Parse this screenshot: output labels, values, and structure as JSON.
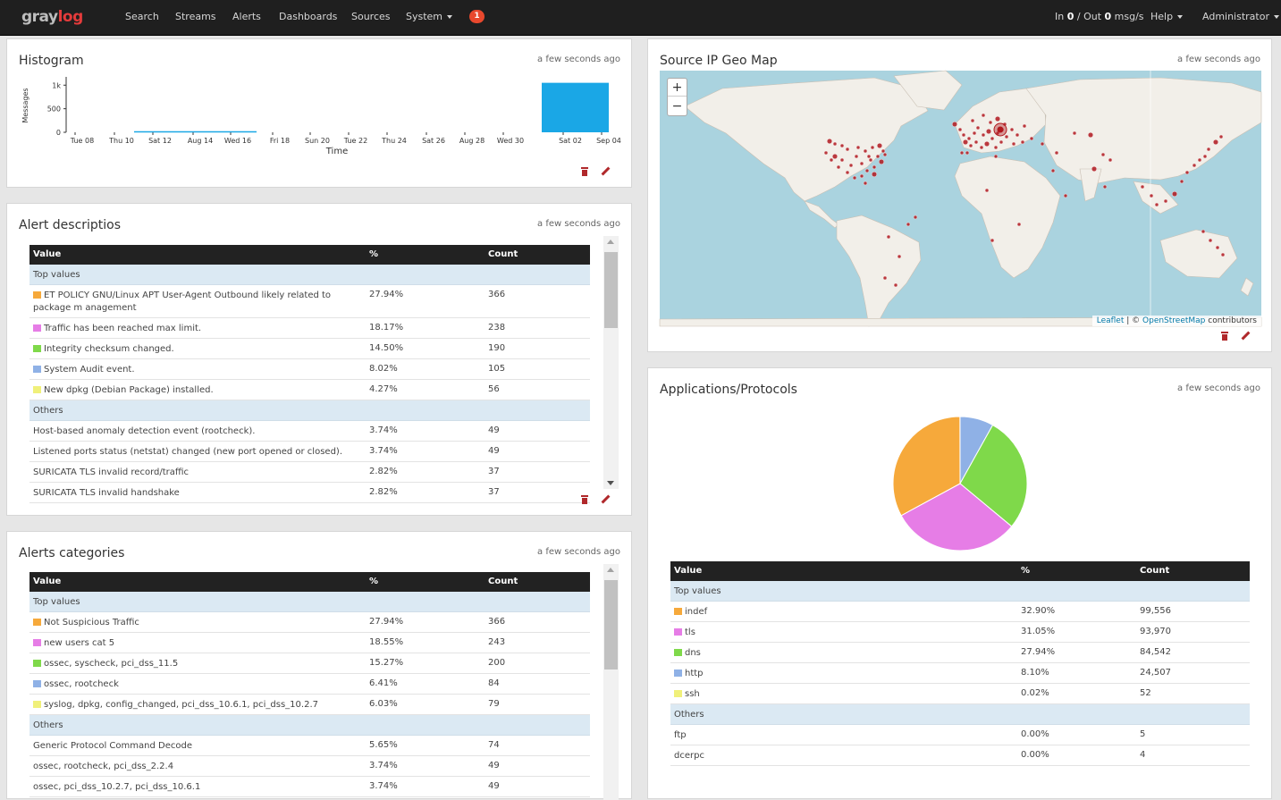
{
  "nav": {
    "logo_main": "gray",
    "logo_accent": "log",
    "items": [
      "Search",
      "Streams",
      "Alerts",
      "Dashboards",
      "Sources",
      "System"
    ],
    "notifications": "1",
    "throughput_prefix": "In ",
    "in_value": "0",
    "throughput_mid": " / Out ",
    "out_value": "0",
    "throughput_suffix": " msg/s",
    "help": "Help",
    "user": "Administrator"
  },
  "histogram": {
    "title": "Histogram",
    "updated": "a few seconds ago"
  },
  "chart_data": {
    "type": "bar",
    "title": "Histogram",
    "xlabel": "Time",
    "ylabel": "Messages",
    "y_ticks": [
      "1k",
      "500",
      "0"
    ],
    "ylim": [
      0,
      1100
    ],
    "x_ticks": [
      "Tue 08",
      "Thu 10",
      "Sat 12",
      "Aug 14",
      "Wed 16",
      "Fri 18",
      "Sun 20",
      "Tue 22",
      "Thu 24",
      "Sat 26",
      "Aug 28",
      "Wed 30",
      "Sat 02",
      "Sep 04"
    ],
    "bars": [
      {
        "from": "Sat 02",
        "to": "Sep 04",
        "value": 1050
      }
    ],
    "baseline": {
      "from": "Thu 10",
      "to": "Fri 18",
      "value": 10
    },
    "color": "#1aa7e6"
  },
  "colors": {
    "orange": "#f6a93b",
    "pink": "#e67de6",
    "green": "#7fd94a",
    "blue": "#8fb1e6",
    "yellow": "#f0f07a",
    "map_dot": "#b0181e",
    "land": "#f2efe9"
  },
  "alert_desc": {
    "title": "Alert descriptios",
    "updated": "a few seconds ago",
    "headers": {
      "value": "Value",
      "pct": "%",
      "count": "Count"
    },
    "top_label": "Top values",
    "others_label": "Others",
    "top": [
      {
        "value": "ET POLICY GNU/Linux APT User-Agent Outbound likely related to package m anagement",
        "pct": "27.94%",
        "count": "366",
        "color": "#f6a93b"
      },
      {
        "value": "Traffic has been reached max limit.",
        "pct": "18.17%",
        "count": "238",
        "color": "#e67de6"
      },
      {
        "value": "Integrity checksum changed.",
        "pct": "14.50%",
        "count": "190",
        "color": "#7fd94a"
      },
      {
        "value": "System Audit event.",
        "pct": "8.02%",
        "count": "105",
        "color": "#8fb1e6"
      },
      {
        "value": "New dpkg (Debian Package) installed.",
        "pct": "4.27%",
        "count": "56",
        "color": "#f0f07a"
      }
    ],
    "others": [
      {
        "value": "Host-based anomaly detection event (rootcheck).",
        "pct": "3.74%",
        "count": "49"
      },
      {
        "value": "Listened ports status (netstat) changed (new port opened or closed).",
        "pct": "3.74%",
        "count": "49"
      },
      {
        "value": "SURICATA TLS invalid record/traffic",
        "pct": "2.82%",
        "count": "37"
      },
      {
        "value": "SURICATA TLS invalid handshake",
        "pct": "2.82%",
        "count": "37"
      }
    ]
  },
  "alert_cat": {
    "title": "Alerts categories",
    "updated": "a few seconds ago",
    "headers": {
      "value": "Value",
      "pct": "%",
      "count": "Count"
    },
    "top_label": "Top values",
    "others_label": "Others",
    "top": [
      {
        "value": "Not Suspicious Traffic",
        "pct": "27.94%",
        "count": "366",
        "color": "#f6a93b"
      },
      {
        "value": "new users cat 5",
        "pct": "18.55%",
        "count": "243",
        "color": "#e67de6"
      },
      {
        "value": "ossec, syscheck, pci_dss_11.5",
        "pct": "15.27%",
        "count": "200",
        "color": "#7fd94a"
      },
      {
        "value": "ossec, rootcheck",
        "pct": "6.41%",
        "count": "84",
        "color": "#8fb1e6"
      },
      {
        "value": "syslog, dpkg, config_changed, pci_dss_10.6.1, pci_dss_10.2.7",
        "pct": "6.03%",
        "count": "79",
        "color": "#f0f07a"
      }
    ],
    "others": [
      {
        "value": "Generic Protocol Command Decode",
        "pct": "5.65%",
        "count": "74"
      },
      {
        "value": "ossec, rootcheck, pci_dss_2.2.4",
        "pct": "3.74%",
        "count": "49"
      },
      {
        "value": "ossec, pci_dss_10.2.7, pci_dss_10.6.1",
        "pct": "3.74%",
        "count": "49"
      }
    ]
  },
  "geo": {
    "title": "Source IP Geo Map",
    "updated": "a few seconds ago",
    "zoom_in": "+",
    "zoom_out": "−",
    "attr_leaflet": "Leaflet",
    "attr_sep": " | © ",
    "attr_osm": "OpenStreetMap",
    "attr_suffix": " contributors"
  },
  "apps": {
    "title": "Applications/Protocols",
    "updated": "a few seconds ago",
    "headers": {
      "value": "Value",
      "pct": "%",
      "count": "Count"
    },
    "top_label": "Top values",
    "others_label": "Others",
    "top": [
      {
        "value": "indef",
        "pct": "32.90%",
        "count": "99,556",
        "color": "#f6a93b"
      },
      {
        "value": "tls",
        "pct": "31.05%",
        "count": "93,970",
        "color": "#e67de6"
      },
      {
        "value": "dns",
        "pct": "27.94%",
        "count": "84,542",
        "color": "#7fd94a"
      },
      {
        "value": "http",
        "pct": "8.10%",
        "count": "24,507",
        "color": "#8fb1e6"
      },
      {
        "value": "ssh",
        "pct": "0.02%",
        "count": "52",
        "color": "#f0f07a"
      }
    ],
    "others": [
      {
        "value": "ftp",
        "pct": "0.00%",
        "count": "5"
      },
      {
        "value": "dcerpc",
        "pct": "0.00%",
        "count": "4"
      }
    ]
  }
}
